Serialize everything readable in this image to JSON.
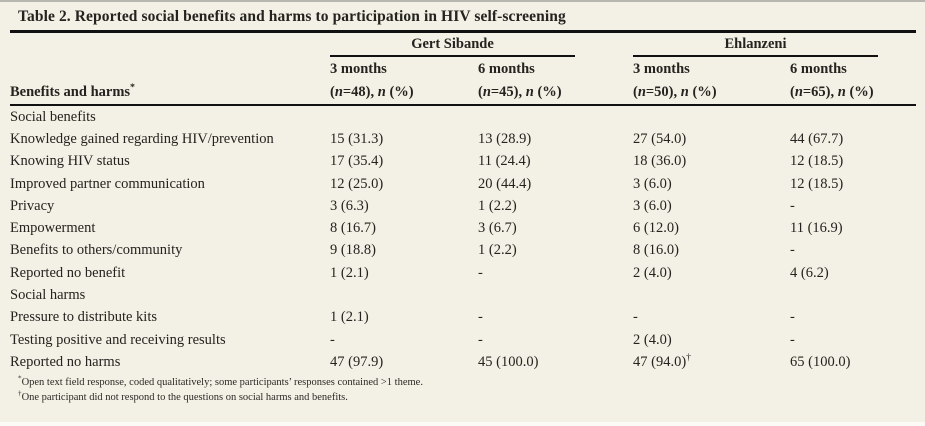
{
  "title": "Table 2. Reported social benefits and harms to participation in HIV self-screening",
  "stub_head": {
    "label": "Benefits and harms",
    "marker": "*"
  },
  "columns": {
    "groups": [
      {
        "label": "Gert Sibande"
      },
      {
        "label": "Ehlanzeni"
      }
    ],
    "subcols": [
      {
        "period": "3 months",
        "sample": "(n=48), n (%)"
      },
      {
        "period": "6 months",
        "sample": "(n=45), n (%)"
      },
      {
        "period": "3 months",
        "sample": "(n=50), n (%)"
      },
      {
        "period": "6 months",
        "sample": "(n=65), n (%)"
      }
    ]
  },
  "rows": [
    {
      "type": "section",
      "label": "Social benefits",
      "values": [
        "",
        "",
        "",
        ""
      ]
    },
    {
      "type": "item",
      "label": "Knowledge gained regarding HIV/prevention",
      "values": [
        "15 (31.3)",
        "13 (28.9)",
        "27 (54.0)",
        "44 (67.7)"
      ]
    },
    {
      "type": "item",
      "label": "Knowing HIV status",
      "values": [
        "17 (35.4)",
        "11 (24.4)",
        "18 (36.0)",
        "12 (18.5)"
      ]
    },
    {
      "type": "item",
      "label": "Improved partner communication",
      "values": [
        "12 (25.0)",
        "20 (44.4)",
        "3 (6.0)",
        "12 (18.5)"
      ]
    },
    {
      "type": "item",
      "label": "Privacy",
      "values": [
        "3 (6.3)",
        "1 (2.2)",
        "3 (6.0)",
        "-"
      ]
    },
    {
      "type": "item",
      "label": "Empowerment",
      "values": [
        "8 (16.7)",
        "3 (6.7)",
        "6 (12.0)",
        "11 (16.9)"
      ]
    },
    {
      "type": "item",
      "label": "Benefits to others/community",
      "values": [
        "9 (18.8)",
        "1 (2.2)",
        "8 (16.0)",
        "-"
      ]
    },
    {
      "type": "item",
      "label": "Reported no benefit",
      "values": [
        "1 (2.1)",
        "-",
        "2 (4.0)",
        "4 (6.2)"
      ]
    },
    {
      "type": "section",
      "label": "Social harms",
      "values": [
        "",
        "",
        "",
        ""
      ]
    },
    {
      "type": "item",
      "label": "Pressure to distribute kits",
      "values": [
        "1 (2.1)",
        "-",
        "-",
        "-"
      ]
    },
    {
      "type": "item",
      "label": "Testing positive and receiving results",
      "values": [
        "-",
        "-",
        "2 (4.0)",
        "-"
      ]
    },
    {
      "type": "item",
      "label": "Reported no harms",
      "values": [
        "47 (97.9)",
        "45 (100.0)",
        "47 (94.0)",
        "65 (100.0)"
      ],
      "dagger": "†"
    }
  ],
  "footnotes": [
    {
      "marker": "*",
      "text": "Open text field response, coded qualitatively; some participants’ responses contained >1 theme."
    },
    {
      "marker": "†",
      "text": "One participant did not respond to the questions on social harms and benefits."
    }
  ],
  "colors": {
    "background": "#f3f1e5",
    "text": "#24231f",
    "rule": "#111111"
  }
}
